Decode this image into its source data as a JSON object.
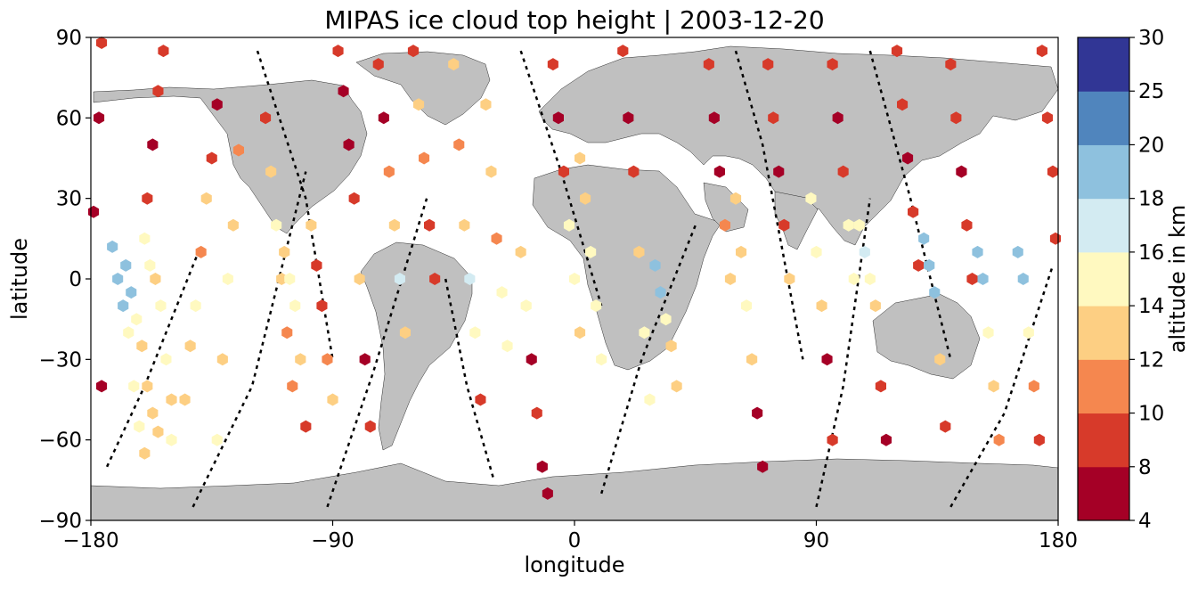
{
  "chart_data": {
    "type": "scatter",
    "title": "MIPAS ice cloud top height | 2003-12-20",
    "xlabel": "longitude",
    "ylabel": "latitude",
    "xlim": [
      -180,
      180
    ],
    "ylim": [
      -90,
      90
    ],
    "xticks": [
      -180,
      -90,
      0,
      90,
      180
    ],
    "yticks": [
      -90,
      -60,
      -30,
      0,
      30,
      60,
      90
    ],
    "xtick_labels": [
      "−180",
      "−90",
      "0",
      "90",
      "180"
    ],
    "ytick_labels": [
      "−90",
      "−60",
      "−30",
      "0",
      "30",
      "60",
      "90"
    ],
    "grid": false,
    "background": "map-land-grey",
    "land_color": "#c0c0c0",
    "colorbar": {
      "label": "altitude in km",
      "boundaries": [
        4,
        8,
        10,
        12,
        14,
        16,
        18,
        20,
        25,
        30
      ],
      "tick_labels": [
        "4",
        "8",
        "10",
        "12",
        "14",
        "16",
        "18",
        "20",
        "25",
        "30"
      ],
      "colors": [
        "#a50026",
        "#d73027",
        "#f46d43",
        "#fdae61",
        "#fee090",
        "#ffffbf",
        "#e0f3f8",
        "#abd9e9",
        "#74add1",
        "#313695"
      ],
      "display_colors": [
        "#a50026",
        "#d73a2a",
        "#f5874f",
        "#fdcf83",
        "#fff9c0",
        "#d3ebf2",
        "#8ec1de",
        "#5085bd",
        "#313695"
      ]
    },
    "marker": "hexagon",
    "tracks": [
      {
        "lon": [
          -176,
          -177,
          -179,
          -176
        ],
        "lat": [
          88,
          60,
          25,
          -40
        ],
        "z": [
          9,
          7,
          7,
          7
        ]
      },
      {
        "lon": [
          -172,
          -170,
          -168,
          -166,
          -164,
          -162,
          -160
        ],
        "lat": [
          12,
          0,
          -10,
          -20,
          -40,
          -55,
          -65
        ],
        "z": [
          19,
          19,
          19,
          15,
          14,
          14,
          13
        ]
      },
      {
        "lon": [
          -160,
          -158,
          -156,
          -154,
          -152,
          -150,
          -150
        ],
        "lat": [
          15,
          5,
          0,
          -10,
          -30,
          -45,
          -60
        ],
        "z": [
          15,
          15,
          13,
          15,
          14,
          13,
          14
        ]
      },
      {
        "lon": [
          -167,
          -165,
          -163,
          -161,
          -159,
          -157,
          -155
        ],
        "lat": [
          5,
          -5,
          -15,
          -25,
          -40,
          -50,
          -57
        ],
        "z": [
          18,
          18,
          15,
          13,
          13,
          12,
          13
        ]
      },
      {
        "lon": [
          -153,
          -155,
          -157,
          -159
        ],
        "lat": [
          85,
          70,
          50,
          30
        ],
        "z": [
          9,
          9,
          7,
          8
        ]
      },
      {
        "lon": [
          -133,
          -135,
          -137,
          -139,
          -141,
          -143,
          -145
        ],
        "lat": [
          65,
          45,
          30,
          10,
          -10,
          -25,
          -45
        ],
        "z": [
          7,
          8,
          12,
          10,
          14,
          13,
          12
        ]
      },
      {
        "lon": [
          -125,
          -127,
          -129,
          -131,
          -133
        ],
        "lat": [
          48,
          20,
          0,
          -30,
          -60
        ],
        "z": [
          11,
          13,
          14,
          13,
          14
        ]
      },
      {
        "lon": [
          -115,
          -113,
          -111,
          -109,
          -107,
          -105
        ],
        "lat": [
          60,
          40,
          20,
          0,
          -20,
          -40
        ],
        "z": [
          9,
          12,
          15,
          13,
          11,
          10
        ]
      },
      {
        "lon": [
          -108,
          -106,
          -104,
          -102,
          -100
        ],
        "lat": [
          10,
          0,
          -10,
          -30,
          -55
        ],
        "z": [
          13,
          14,
          15,
          12,
          9
        ]
      },
      {
        "lon": [
          -98,
          -96,
          -94,
          -92,
          -90
        ],
        "lat": [
          20,
          5,
          -10,
          -30,
          -45
        ],
        "z": [
          12,
          9,
          8,
          11,
          12
        ]
      },
      {
        "lon": [
          -88,
          -86,
          -84,
          -82,
          -80,
          -78,
          -76
        ],
        "lat": [
          85,
          70,
          50,
          30,
          0,
          -30,
          -55
        ],
        "z": [
          8,
          7,
          7,
          9,
          13,
          7,
          8
        ]
      },
      {
        "lon": [
          -73,
          -71,
          -69,
          -67,
          -65,
          -63
        ],
        "lat": [
          80,
          60,
          40,
          20,
          0,
          -20
        ],
        "z": [
          8,
          7,
          10,
          12,
          16,
          13
        ]
      },
      {
        "lon": [
          -60,
          -58,
          -56,
          -54,
          -52
        ],
        "lat": [
          85,
          65,
          45,
          20,
          0
        ],
        "z": [
          9,
          12,
          10,
          8,
          9
        ]
      },
      {
        "lon": [
          -45,
          -43,
          -41,
          -39,
          -37,
          -35
        ],
        "lat": [
          80,
          50,
          20,
          0,
          -20,
          -45
        ],
        "z": [
          12,
          11,
          13,
          16,
          14,
          9
        ]
      },
      {
        "lon": [
          -33,
          -31,
          -29,
          -27,
          -25
        ],
        "lat": [
          65,
          40,
          15,
          -5,
          -25
        ],
        "z": [
          12,
          13,
          11,
          14,
          15
        ]
      },
      {
        "lon": [
          -20,
          -18,
          -16,
          -14,
          -12,
          -10
        ],
        "lat": [
          10,
          -10,
          -30,
          -50,
          -70,
          -80
        ],
        "z": [
          13,
          14,
          7,
          9,
          7,
          7
        ]
      },
      {
        "lon": [
          -8,
          -6,
          -4,
          -2,
          0,
          2
        ],
        "lat": [
          80,
          60,
          40,
          20,
          0,
          -20
        ],
        "z": [
          8,
          7,
          9,
          15,
          14,
          13
        ]
      },
      {
        "lon": [
          2,
          4,
          6,
          8,
          10
        ],
        "lat": [
          45,
          30,
          10,
          -10,
          -30
        ],
        "z": [
          13,
          13,
          14,
          15,
          14
        ]
      },
      {
        "lon": [
          18,
          20,
          22,
          24,
          26,
          28
        ],
        "lat": [
          85,
          60,
          40,
          10,
          -20,
          -45
        ],
        "z": [
          8,
          7,
          9,
          13,
          15,
          14
        ]
      },
      {
        "lon": [
          30,
          32,
          34,
          36,
          38
        ],
        "lat": [
          5,
          -5,
          -15,
          -25,
          -40
        ],
        "z": [
          19,
          19,
          14,
          13,
          12
        ]
      },
      {
        "lon": [
          50,
          52,
          54,
          56,
          58
        ],
        "lat": [
          80,
          60,
          40,
          20,
          0
        ],
        "z": [
          8,
          7,
          7,
          10,
          12
        ]
      },
      {
        "lon": [
          60,
          62,
          64,
          66,
          68,
          70
        ],
        "lat": [
          30,
          10,
          -10,
          -30,
          -50,
          -70
        ],
        "z": [
          13,
          13,
          14,
          13,
          7,
          7
        ]
      },
      {
        "lon": [
          72,
          74,
          76,
          78,
          80
        ],
        "lat": [
          80,
          60,
          40,
          20,
          0
        ],
        "z": [
          8,
          9,
          7,
          9,
          13
        ]
      },
      {
        "lon": [
          88,
          90,
          92,
          94,
          96
        ],
        "lat": [
          30,
          10,
          -10,
          -30,
          -60
        ],
        "z": [
          14,
          15,
          13,
          7,
          8
        ]
      },
      {
        "lon": [
          96,
          98,
          100,
          102,
          104
        ],
        "lat": [
          80,
          60,
          40,
          20,
          0
        ],
        "z": [
          8,
          7,
          9,
          14,
          15
        ]
      },
      {
        "lon": [
          106,
          108,
          110,
          112,
          114,
          116
        ],
        "lat": [
          20,
          10,
          0,
          -10,
          -40,
          -60
        ],
        "z": [
          15,
          16,
          15,
          13,
          9,
          7
        ]
      },
      {
        "lon": [
          120,
          122,
          124,
          126,
          128
        ],
        "lat": [
          85,
          65,
          45,
          25,
          5
        ],
        "z": [
          9,
          8,
          7,
          8,
          9
        ]
      },
      {
        "lon": [
          130,
          132,
          134,
          136,
          138
        ],
        "lat": [
          15,
          5,
          -5,
          -30,
          -55
        ],
        "z": [
          19,
          19,
          18,
          12,
          9
        ]
      },
      {
        "lon": [
          140,
          142,
          144,
          146,
          148
        ],
        "lat": [
          80,
          60,
          40,
          20,
          0
        ],
        "z": [
          9,
          8,
          7,
          9,
          8
        ]
      },
      {
        "lon": [
          150,
          152,
          154,
          156,
          158
        ],
        "lat": [
          10,
          0,
          -20,
          -40,
          -60
        ],
        "z": [
          19,
          19,
          14,
          12,
          10
        ]
      },
      {
        "lon": [
          165,
          167,
          169,
          171,
          173
        ],
        "lat": [
          10,
          0,
          -20,
          -40,
          -60
        ],
        "z": [
          19,
          19,
          14,
          11,
          8
        ]
      },
      {
        "lon": [
          174,
          176,
          178,
          179
        ],
        "lat": [
          85,
          60,
          40,
          15
        ],
        "z": [
          9,
          8,
          9,
          8
        ]
      }
    ],
    "orbit_paths": [
      {
        "lon": [
          -174,
          -160,
          -140
        ],
        "lat": [
          -70,
          -40,
          10
        ]
      },
      {
        "lon": [
          -142,
          -120,
          -100
        ],
        "lat": [
          -85,
          -40,
          40
        ]
      },
      {
        "lon": [
          -118,
          -100,
          -90
        ],
        "lat": [
          85,
          30,
          -30
        ]
      },
      {
        "lon": [
          -92,
          -75,
          -55
        ],
        "lat": [
          -85,
          -35,
          30
        ]
      },
      {
        "lon": [
          -48,
          -40,
          -30
        ],
        "lat": [
          0,
          -40,
          -75
        ]
      },
      {
        "lon": [
          -20,
          -5,
          10
        ],
        "lat": [
          85,
          40,
          -10
        ]
      },
      {
        "lon": [
          10,
          25,
          45
        ],
        "lat": [
          -80,
          -30,
          20
        ]
      },
      {
        "lon": [
          60,
          70,
          85
        ],
        "lat": [
          85,
          50,
          -30
        ]
      },
      {
        "lon": [
          90,
          100,
          110
        ],
        "lat": [
          -85,
          -40,
          30
        ]
      },
      {
        "lon": [
          110,
          125,
          140
        ],
        "lat": [
          85,
          30,
          -30
        ]
      },
      {
        "lon": [
          140,
          160,
          178
        ],
        "lat": [
          -85,
          -50,
          5
        ]
      }
    ]
  }
}
